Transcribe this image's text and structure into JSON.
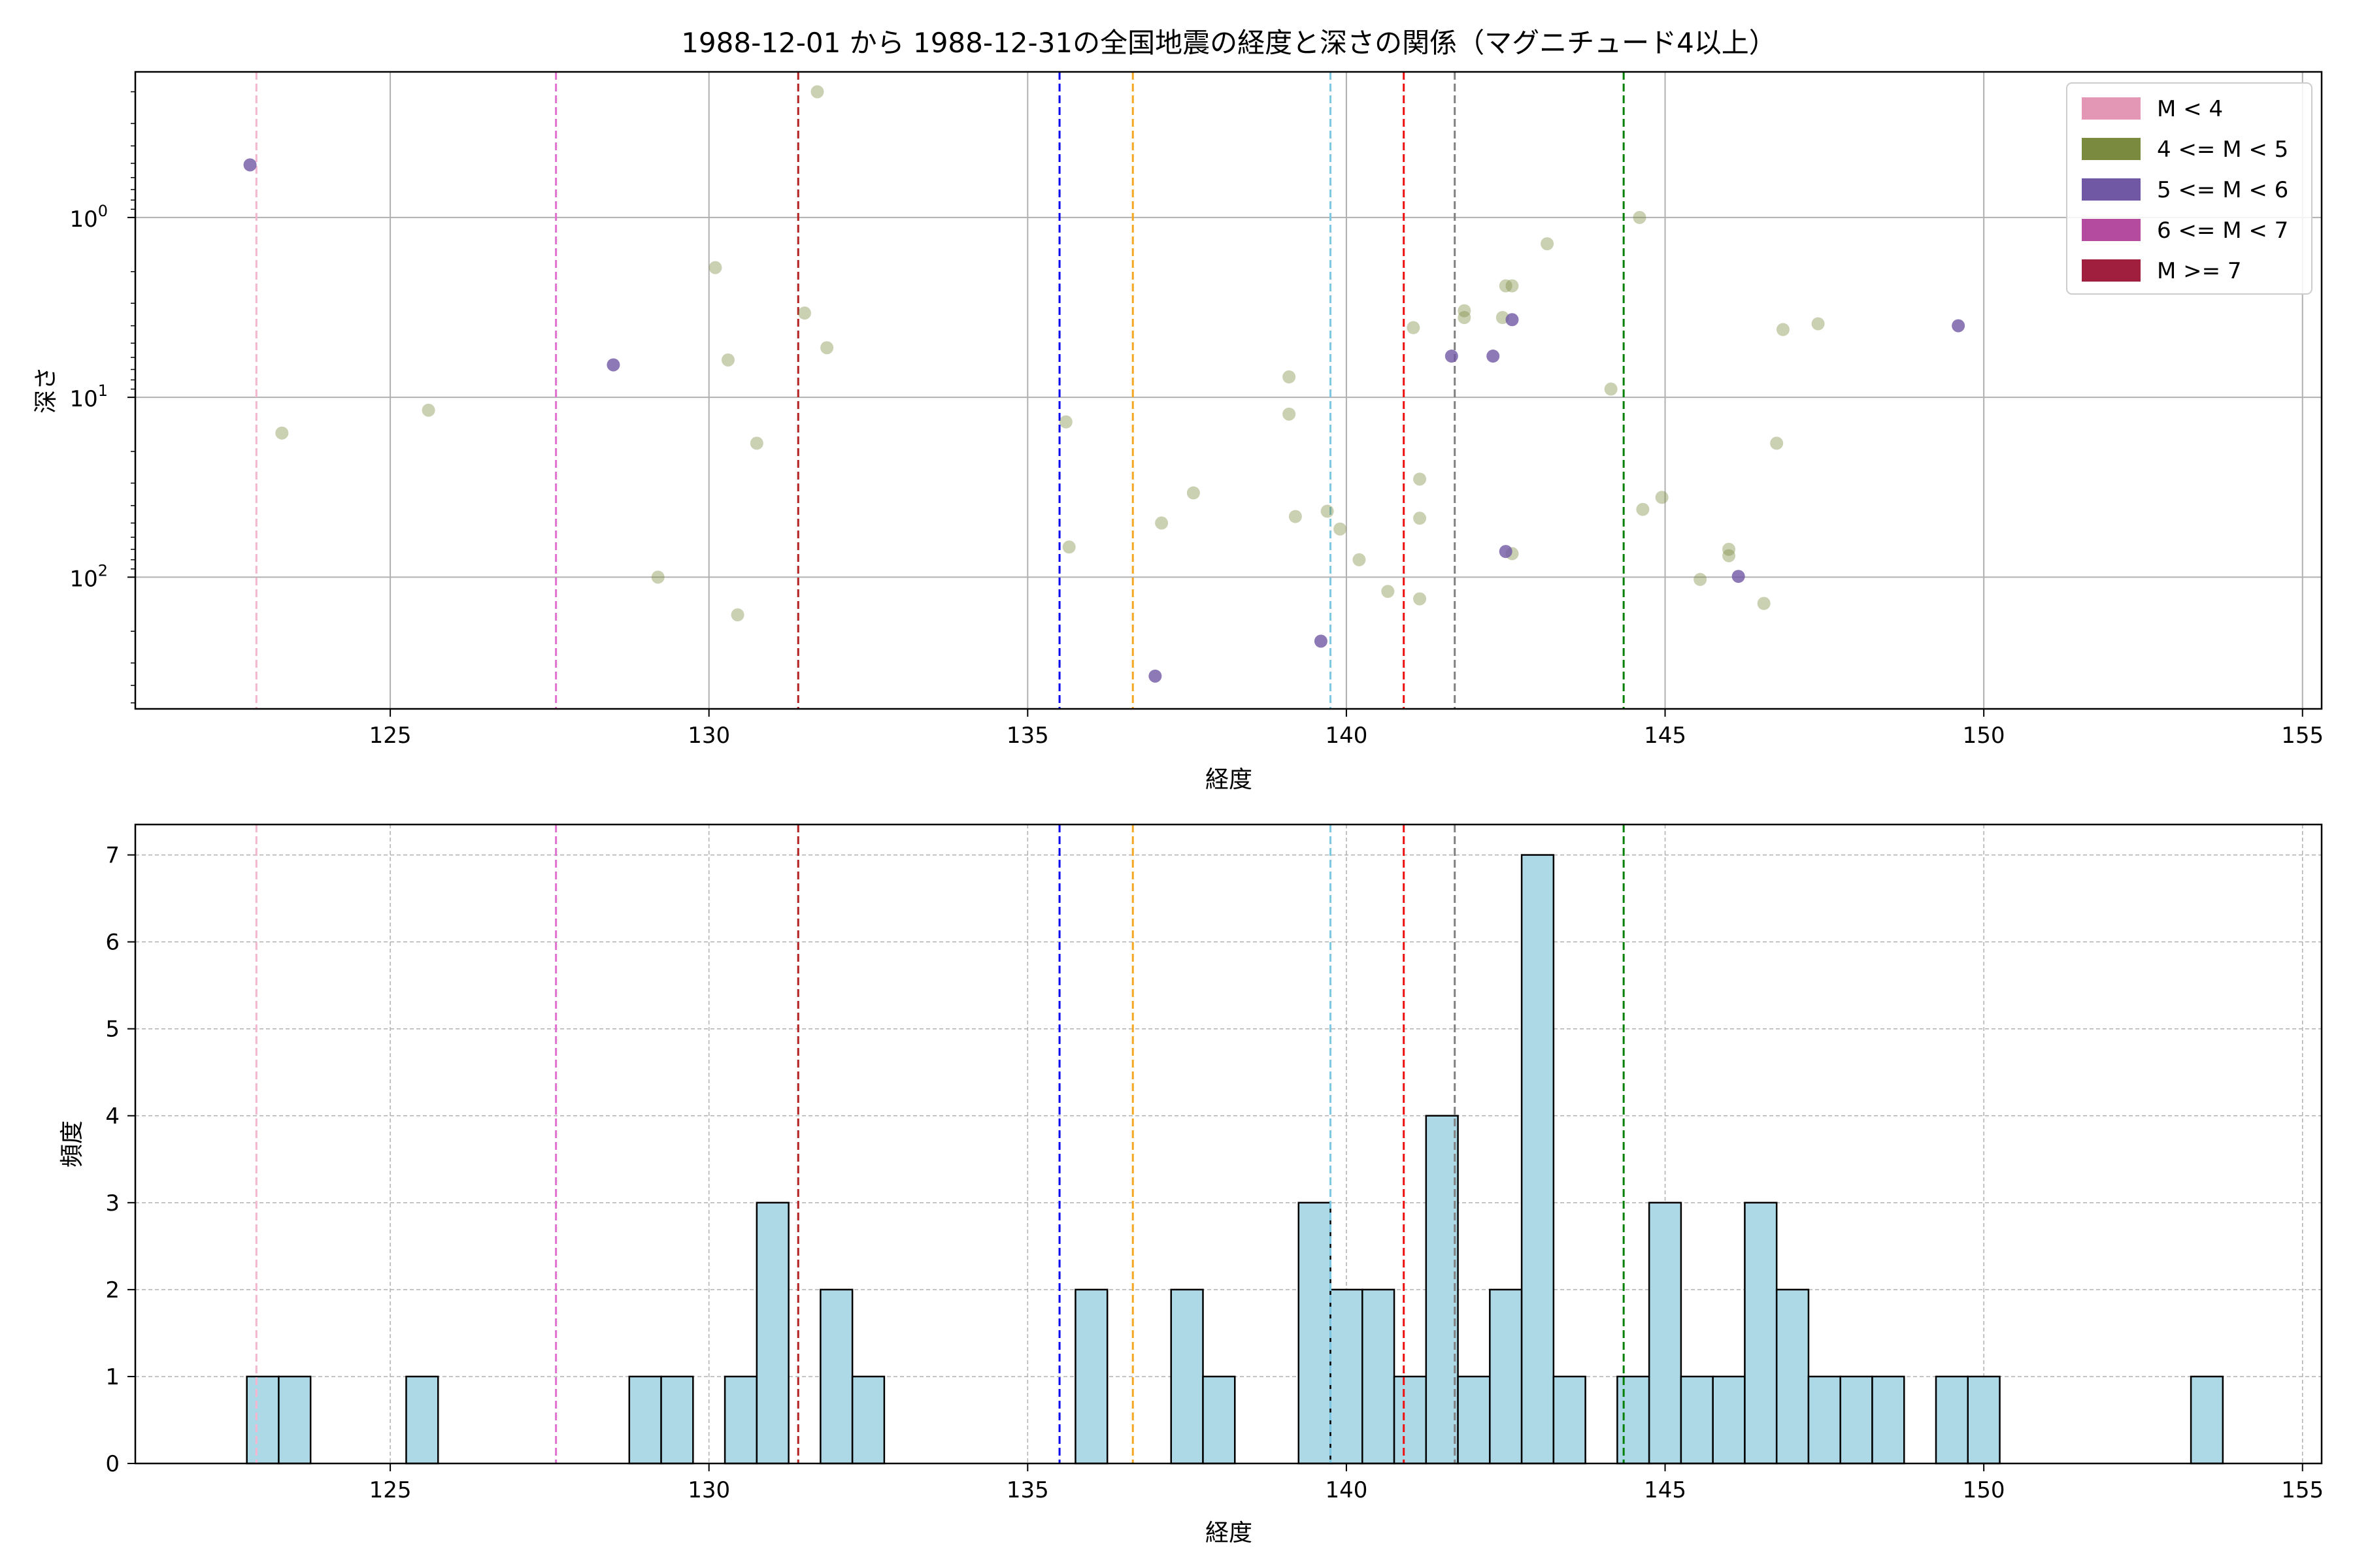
{
  "chart_data": [
    {
      "type": "scatter",
      "title": "1988-12-01 から 1988-12-31の全国地震の経度と深さの関係（マグニチュード4以上）",
      "xlabel": "経度",
      "ylabel": "深さ",
      "xlim": [
        121,
        155.3
      ],
      "ylim": [
        540,
        0.155
      ],
      "yscale": "log",
      "y_inverted": true,
      "grid": true,
      "x_ticks": [
        "125",
        "130",
        "135",
        "140",
        "145",
        "150",
        "155"
      ],
      "y_ticks": [
        {
          "label": "10",
          "exp": "0",
          "value": 1
        },
        {
          "label": "10",
          "exp": "1",
          "value": 10
        },
        {
          "label": "10",
          "exp": "2",
          "value": 100
        }
      ],
      "legend_position": "top-right",
      "legend": [
        {
          "label": "M < 4",
          "color": "#e497b5"
        },
        {
          "label": "4 <= M < 5",
          "color": "#7a8a3f"
        },
        {
          "label": "5 <= M < 6",
          "color": "#7058a4"
        },
        {
          "label": "6 <= M < 7",
          "color": "#b54b9e"
        },
        {
          "label": "M >= 7",
          "color": "#a01e3e"
        }
      ],
      "vlines": [
        {
          "x": 122.9,
          "color": "#f4b6cf"
        },
        {
          "x": 127.6,
          "color": "#e070d0"
        },
        {
          "x": 131.4,
          "color": "#b22222"
        },
        {
          "x": 135.5,
          "color": "#0000ee"
        },
        {
          "x": 136.65,
          "color": "#f5a623"
        },
        {
          "x": 139.75,
          "color": "#7ec8e3"
        },
        {
          "x": 140.9,
          "color": "#ee1111"
        },
        {
          "x": 141.7,
          "color": "#808080"
        },
        {
          "x": 144.35,
          "color": "#008000"
        }
      ],
      "series": [
        {
          "name": "4 <= M < 5",
          "color": "#7a8a3f",
          "points": [
            [
              123.3,
              15.8
            ],
            [
              125.6,
              11.8
            ],
            [
              130.1,
              1.9
            ],
            [
              130.3,
              6.2
            ],
            [
              130.75,
              18.0
            ],
            [
              131.5,
              3.4
            ],
            [
              131.85,
              5.3
            ],
            [
              131.7,
              0.2
            ],
            [
              129.2,
              100
            ],
            [
              130.45,
              162
            ],
            [
              135.6,
              13.7
            ],
            [
              135.65,
              68
            ],
            [
              137.1,
              50
            ],
            [
              137.6,
              34
            ],
            [
              139.1,
              7.7
            ],
            [
              139.1,
              12.4
            ],
            [
              139.2,
              46
            ],
            [
              139.7,
              43
            ],
            [
              139.9,
              54
            ],
            [
              140.2,
              80
            ],
            [
              140.65,
              120
            ],
            [
              141.05,
              4.1
            ],
            [
              141.15,
              28.5
            ],
            [
              141.15,
              47
            ],
            [
              141.15,
              132
            ],
            [
              141.85,
              3.3
            ],
            [
              141.85,
              3.6
            ],
            [
              142.45,
              3.6
            ],
            [
              142.5,
              2.4
            ],
            [
              142.6,
              2.4
            ],
            [
              142.6,
              74
            ],
            [
              143.15,
              1.4
            ],
            [
              144.15,
              9.0
            ],
            [
              144.6,
              1.0
            ],
            [
              144.65,
              42
            ],
            [
              144.95,
              36
            ],
            [
              145.55,
              103
            ],
            [
              146.0,
              70
            ],
            [
              146.0,
              76
            ],
            [
              146.55,
              140
            ],
            [
              146.75,
              18.0
            ],
            [
              146.85,
              4.2
            ],
            [
              147.4,
              3.9
            ]
          ]
        },
        {
          "name": "5 <= M < 6",
          "color": "#7058a4",
          "points": [
            [
              122.8,
              0.51
            ],
            [
              128.5,
              6.6
            ],
            [
              137.0,
              355
            ],
            [
              139.6,
              227
            ],
            [
              141.65,
              5.9
            ],
            [
              142.3,
              5.9
            ],
            [
              142.5,
              72
            ],
            [
              142.6,
              3.7
            ],
            [
              146.15,
              99
            ],
            [
              149.6,
              4.0
            ]
          ]
        }
      ]
    },
    {
      "type": "bar",
      "xlabel": "経度",
      "ylabel": "頻度",
      "xlim": [
        121,
        155.3
      ],
      "ylim": [
        0,
        7.35
      ],
      "grid": true,
      "bar_color": "#add8e6",
      "x_ticks": [
        "125",
        "130",
        "135",
        "140",
        "145",
        "150",
        "155"
      ],
      "y_ticks": [
        "0",
        "1",
        "2",
        "3",
        "4",
        "5",
        "6",
        "7"
      ],
      "bin_start": 122.75,
      "bin_width": 0.5,
      "counts": [
        1,
        1,
        0,
        0,
        0,
        1,
        0,
        0,
        0,
        0,
        0,
        0,
        1,
        1,
        0,
        1,
        3,
        0,
        2,
        1,
        0,
        0,
        0,
        0,
        0,
        0,
        2,
        0,
        0,
        2,
        1,
        0,
        0,
        3,
        2,
        2,
        1,
        4,
        1,
        2,
        7,
        1,
        0,
        1,
        3,
        1,
        1,
        3,
        2,
        1,
        1,
        1,
        0,
        1,
        1,
        0,
        0,
        0,
        0,
        0,
        0,
        1
      ],
      "vlines": [
        {
          "x": 122.9,
          "color": "#f4b6cf"
        },
        {
          "x": 127.6,
          "color": "#e070d0"
        },
        {
          "x": 131.4,
          "color": "#b22222"
        },
        {
          "x": 135.5,
          "color": "#0000ee"
        },
        {
          "x": 136.65,
          "color": "#f5a623"
        },
        {
          "x": 139.75,
          "color": "#7ec8e3"
        },
        {
          "x": 140.9,
          "color": "#ee1111"
        },
        {
          "x": 141.7,
          "color": "#808080"
        },
        {
          "x": 144.35,
          "color": "#008000"
        }
      ]
    }
  ]
}
